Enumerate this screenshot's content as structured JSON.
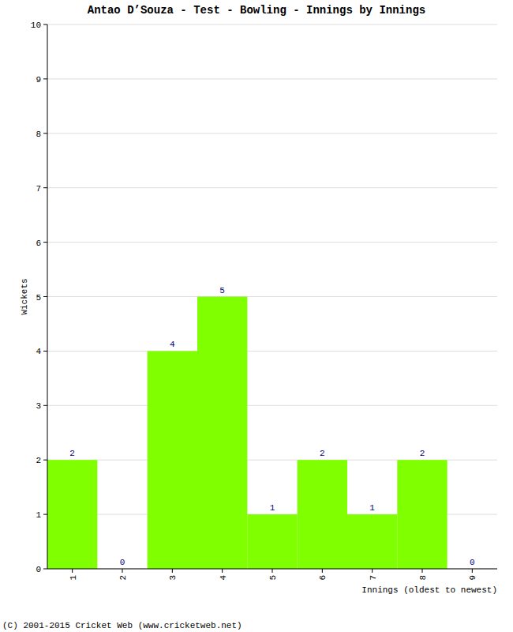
{
  "chart_data": {
    "type": "bar",
    "title": "Antao D’Souza - Test - Bowling - Innings by Innings",
    "xlabel": "Innings (oldest to newest)",
    "ylabel": "Wickets",
    "source": "(C) 2001-2015 Cricket Web (www.cricketweb.net)",
    "categories": [
      "1",
      "2",
      "3",
      "4",
      "5",
      "6",
      "7",
      "8",
      "9"
    ],
    "values": [
      2,
      0,
      4,
      5,
      1,
      2,
      1,
      2,
      0
    ],
    "color": "#7fff00",
    "ylim": [
      0,
      10
    ],
    "yticks": [
      0,
      1,
      2,
      3,
      4,
      5,
      6,
      7,
      8,
      9,
      10
    ],
    "grid": true,
    "data_labels": true
  }
}
